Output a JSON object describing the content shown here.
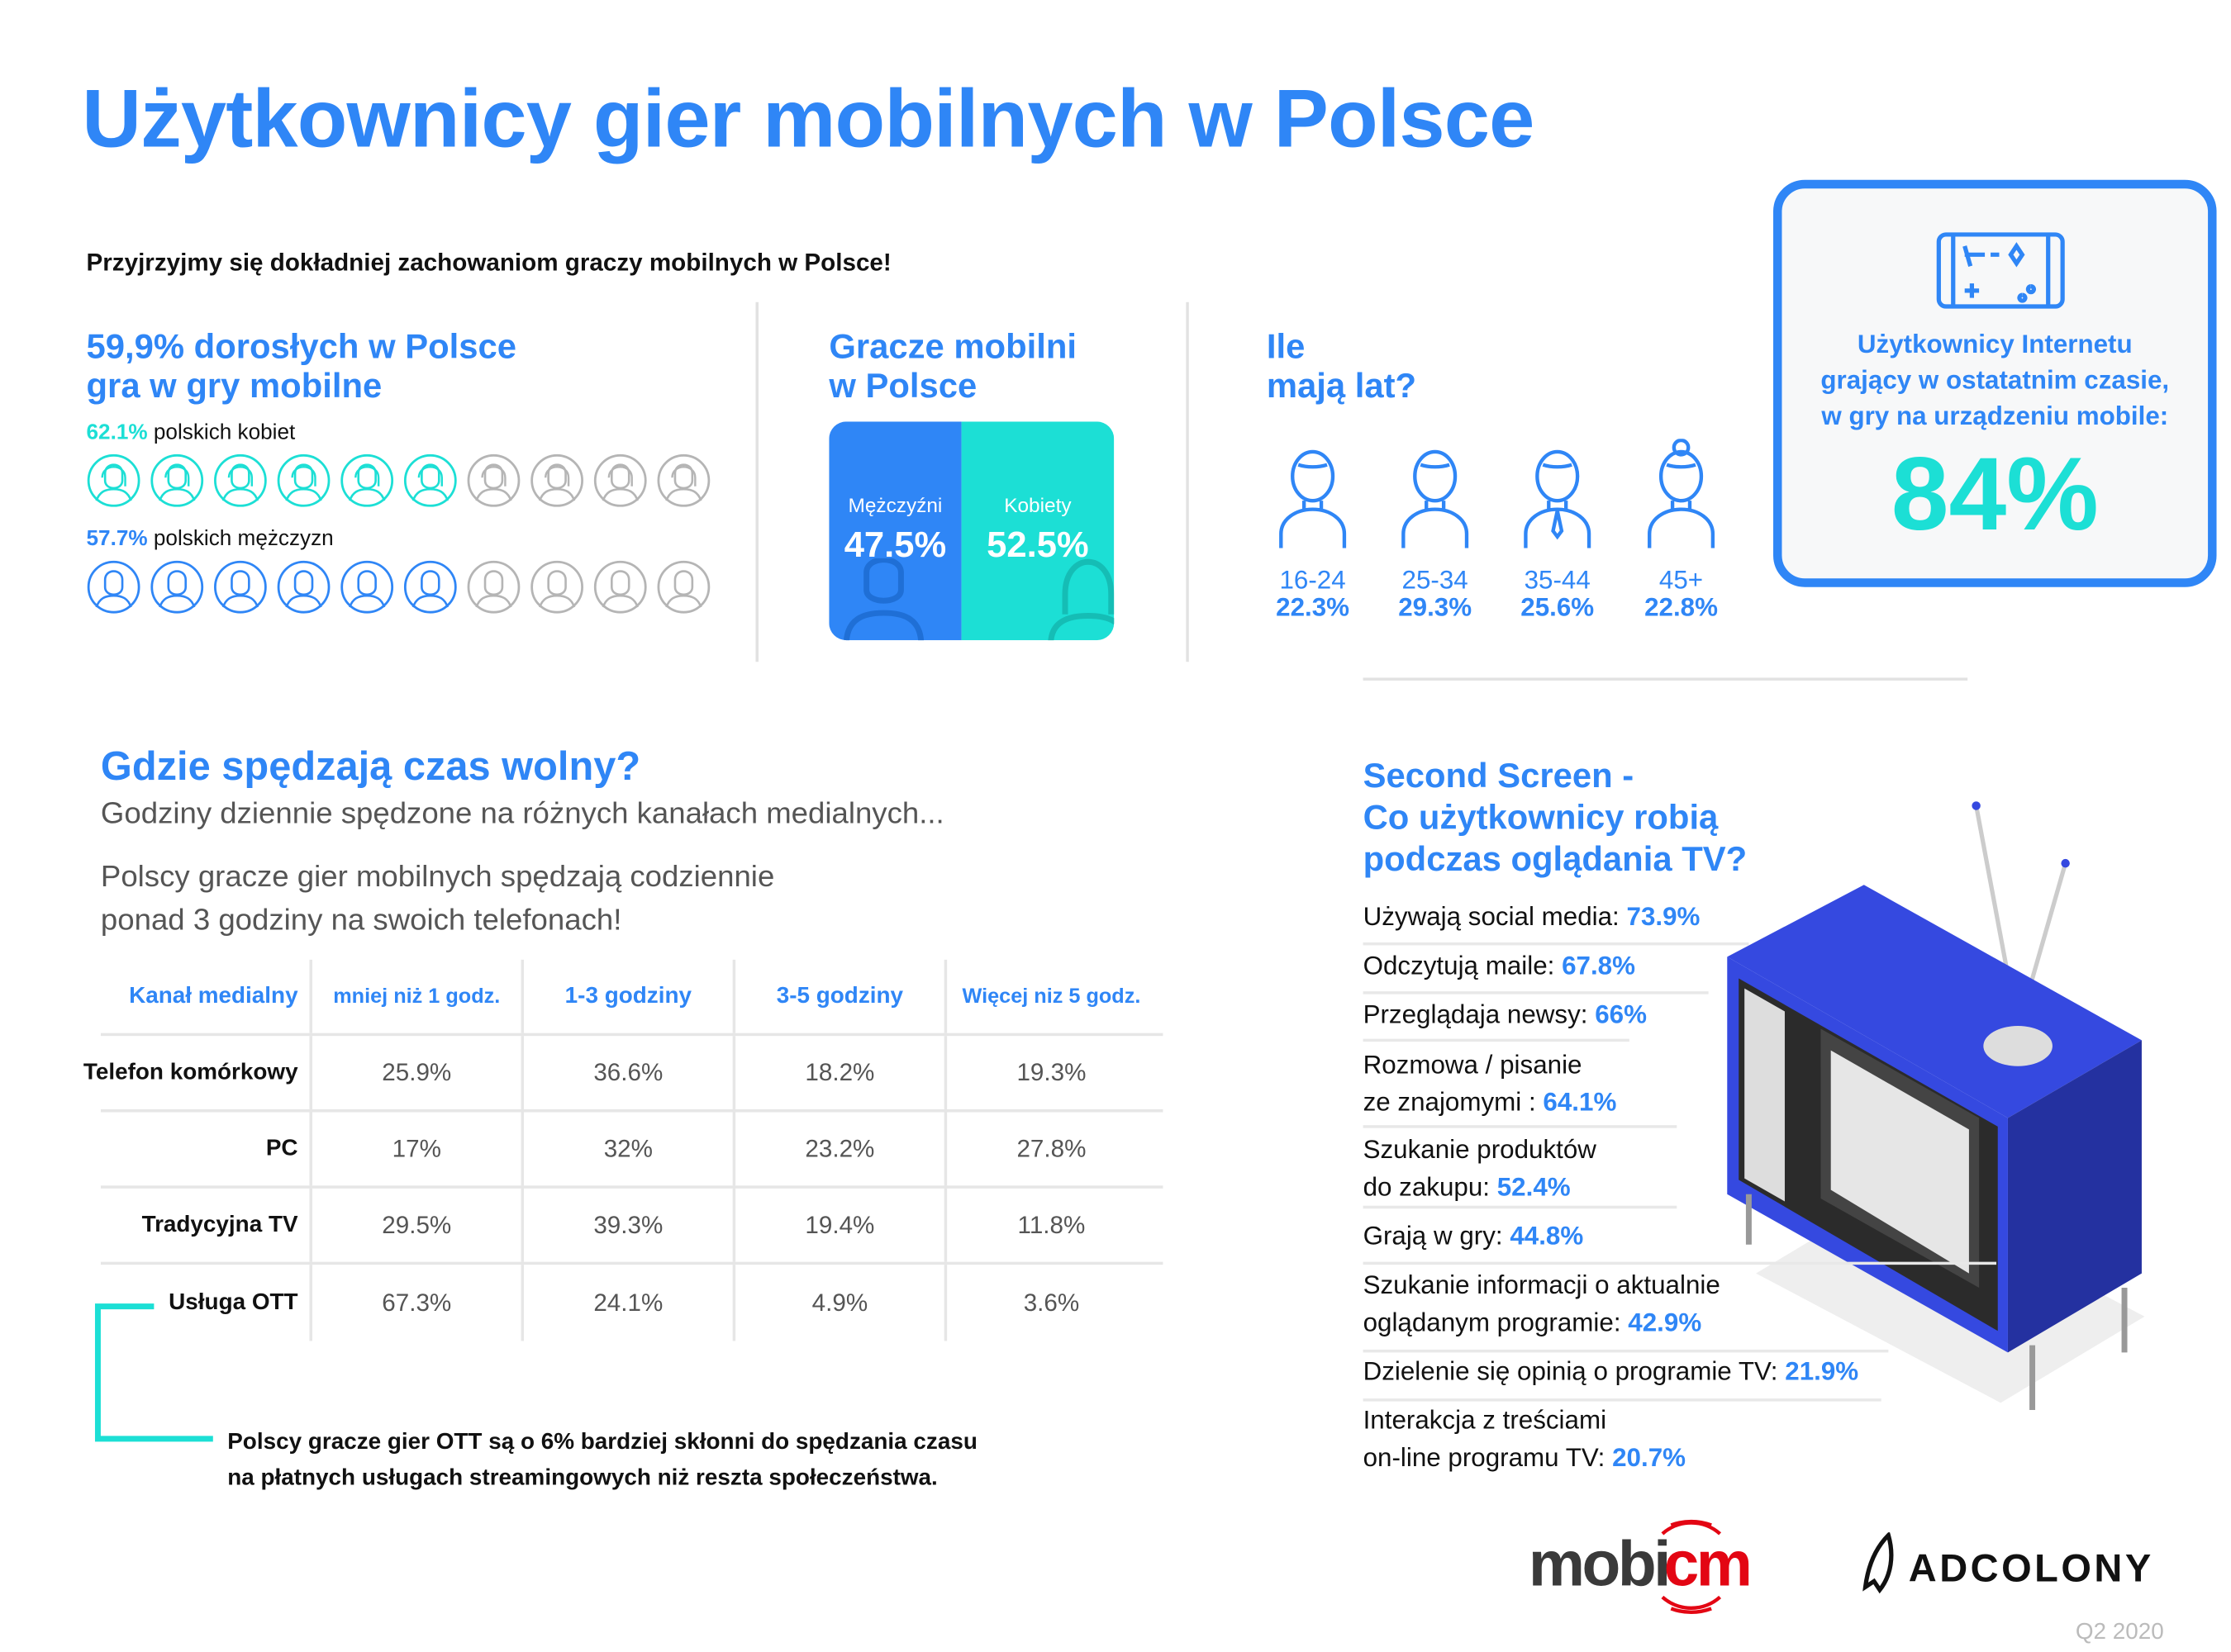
{
  "title": "Użytkownicy gier mobilnych w Polsce",
  "subtitle": "Przyjrzyjmy się dokładniej zachowaniom graczy mobilnych w Polsce!",
  "adults": {
    "headline_1": "59,9% dorosłych w Polsce",
    "headline_2": "gra w gry mobilne",
    "women_pct": "62.1%",
    "women_label": "polskich kobiet",
    "women_filled": 6,
    "men_pct": "57.7%",
    "men_label": "polskich mężczyzn",
    "men_filled": 6,
    "icons_total": 10
  },
  "gender": {
    "title_1": "Gracze mobilni",
    "title_2": "w Polsce",
    "men_label": "Mężczyźni",
    "men_value": "47.5%",
    "women_label": "Kobiety",
    "women_value": "52.5%"
  },
  "age": {
    "title_1": "Ile",
    "title_2": "mają lat?",
    "groups": [
      {
        "range": "16-24",
        "pct": "22.3%"
      },
      {
        "range": "25-34",
        "pct": "29.3%"
      },
      {
        "range": "35-44",
        "pct": "25.6%"
      },
      {
        "range": "45+",
        "pct": "22.8%"
      }
    ]
  },
  "internet": {
    "line_1": "Użytkownicy Internetu",
    "line_2": "grający w ostatatnim czasie,",
    "line_3": "w gry na urządzeniu mobile:",
    "value": "84%"
  },
  "leisure": {
    "title": "Gdzie spędzają czas wolny?",
    "sub": "Godziny dziennie spędzone na różnych kanałach medialnych...",
    "note_1": "Polscy gracze gier mobilnych spędzają codziennie",
    "note_2": "ponad 3 godziny na swoich telefonach!",
    "headers": [
      "Kanał medialny",
      "mniej niż 1 godz.",
      "1-3 godziny",
      "3-5 godziny",
      "Więcej niz 5 godz."
    ],
    "rows": [
      [
        "Telefon komórkowy",
        "25.9%",
        "36.6%",
        "18.2%",
        "19.3%"
      ],
      [
        "PC",
        "17%",
        "32%",
        "23.2%",
        "27.8%"
      ],
      [
        "Tradycyjna TV",
        "29.5%",
        "39.3%",
        "19.4%",
        "11.8%"
      ],
      [
        "Usługa OTT",
        "67.3%",
        "24.1%",
        "4.9%",
        "3.6%"
      ]
    ],
    "ott_note_1": "Polscy gracze gier OTT są o 6% bardziej skłonni do spędzania czasu",
    "ott_note_2": "na płatnych usługach streamingowych niż reszta społeczeństwa."
  },
  "second_screen": {
    "title_1": "Second Screen -",
    "title_2": "Co użytkownicy robią",
    "title_3": "podczas oglądania TV?",
    "items": [
      {
        "l1": "Używają social media:",
        "l2": "",
        "v": "73.9%"
      },
      {
        "l1": "Odczytują maile:",
        "l2": "",
        "v": "67.8%"
      },
      {
        "l1": "Przeglądaja newsy:",
        "l2": "",
        "v": "66%"
      },
      {
        "l1": "Rozmowa / pisanie",
        "l2": "ze znajomymi :",
        "v": "64.1%"
      },
      {
        "l1": "Szukanie produktów",
        "l2": "do zakupu:",
        "v": "52.4%"
      },
      {
        "l1": "Grają w gry:",
        "l2": "",
        "v": "44.8%"
      },
      {
        "l1": "Szukanie informacji o aktualnie",
        "l2": "oglądanym programie:",
        "v": "42.9%"
      },
      {
        "l1": "Dzielenie się opinią o programie TV:",
        "l2": "",
        "v": "21.9%"
      },
      {
        "l1": "Interakcja z treściami",
        "l2": "on-line programu TV:",
        "v": "20.7%"
      }
    ]
  },
  "footer": {
    "logo_1": "mobicm",
    "logo_2": "ADCOLONY",
    "period": "Q2 2020"
  },
  "colors": {
    "blue": "#2f86f6",
    "teal": "#1cdfd5",
    "tv": "#3549e0",
    "gray": "#bbbbbb"
  }
}
